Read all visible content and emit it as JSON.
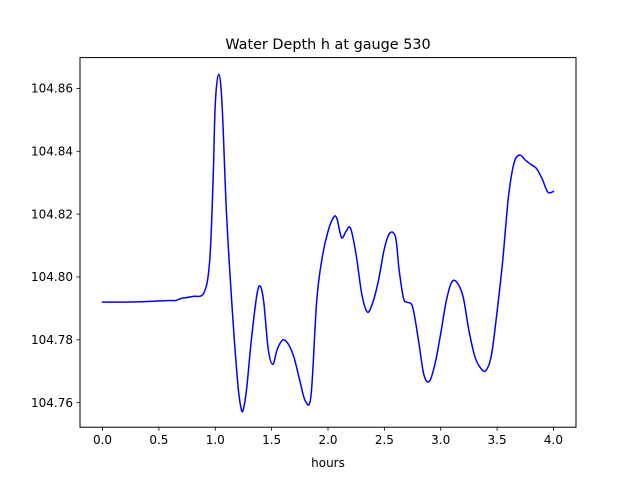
{
  "chart_data": {
    "type": "line",
    "title": "Water Depth h at gauge 530",
    "xlabel": "hours",
    "ylabel": "",
    "xlim": [
      -0.2,
      4.2
    ],
    "ylim": [
      104.7522,
      104.8698
    ],
    "grid": false,
    "x_ticks": [
      0.0,
      0.5,
      1.0,
      1.5,
      2.0,
      2.5,
      3.0,
      3.5,
      4.0
    ],
    "x_tick_labels": [
      "0.0",
      "0.5",
      "1.0",
      "1.5",
      "2.0",
      "2.5",
      "3.0",
      "3.5",
      "4.0"
    ],
    "y_ticks": [
      104.76,
      104.78,
      104.8,
      104.82,
      104.84,
      104.86
    ],
    "y_tick_labels": [
      "104.76",
      "104.78",
      "104.80",
      "104.82",
      "104.84",
      "104.86"
    ],
    "series": [
      {
        "color": "#0000ff",
        "x": [
          0.0,
          0.2,
          0.4,
          0.6,
          0.65,
          0.7,
          0.8,
          0.9,
          0.95,
          0.98,
          1.0,
          1.03,
          1.06,
          1.1,
          1.15,
          1.2,
          1.23,
          1.25,
          1.28,
          1.32,
          1.37,
          1.4,
          1.43,
          1.47,
          1.51,
          1.55,
          1.6,
          1.65,
          1.7,
          1.75,
          1.8,
          1.85,
          1.9,
          1.95,
          2.0,
          2.05,
          2.08,
          2.12,
          2.16,
          2.2,
          2.25,
          2.3,
          2.35,
          2.4,
          2.45,
          2.5,
          2.55,
          2.6,
          2.63,
          2.67,
          2.7,
          2.75,
          2.8,
          2.85,
          2.9,
          2.95,
          3.0,
          3.05,
          3.1,
          3.15,
          3.2,
          3.25,
          3.3,
          3.35,
          3.4,
          3.45,
          3.5,
          3.55,
          3.6,
          3.65,
          3.7,
          3.75,
          3.8,
          3.85,
          3.9,
          3.95,
          4.0
        ],
        "values": [
          104.792,
          104.792,
          104.7922,
          104.7925,
          104.7925,
          104.7932,
          104.7938,
          104.795,
          104.805,
          104.83,
          104.855,
          104.8645,
          104.855,
          104.82,
          104.79,
          104.766,
          104.758,
          104.758,
          104.765,
          104.78,
          104.7945,
          104.797,
          104.792,
          104.777,
          104.7722,
          104.777,
          104.78,
          104.7785,
          104.7742,
          104.767,
          104.7605,
          104.7625,
          104.7925,
          104.8065,
          104.8145,
          104.819,
          104.8185,
          104.8125,
          104.8145,
          104.8155,
          104.807,
          104.7945,
          104.7888,
          104.7922,
          104.7993,
          104.809,
          104.814,
          104.8125,
          104.8025,
          104.7932,
          104.792,
          104.7905,
          104.7805,
          104.769,
          104.7668,
          104.7725,
          104.782,
          104.7925,
          104.7985,
          104.798,
          104.7935,
          104.783,
          104.775,
          104.7712,
          104.7702,
          104.7752,
          104.789,
          104.8052,
          104.8252,
          104.8362,
          104.8388,
          104.8372,
          104.8358,
          104.8345,
          104.8312,
          104.827,
          104.8272
        ]
      }
    ]
  }
}
